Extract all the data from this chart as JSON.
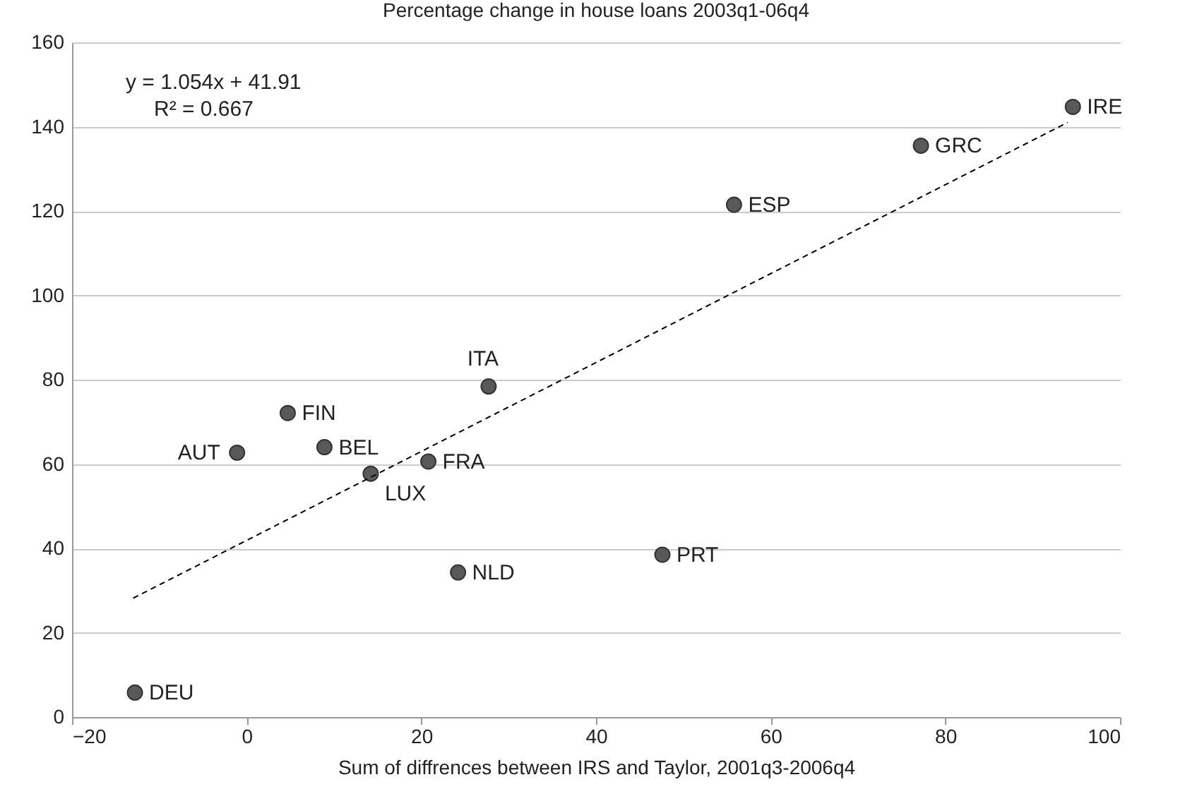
{
  "chart_data": {
    "type": "scatter",
    "title": "Percentage change in house loans 2003q1-06q4",
    "xlabel": "Sum of diffrences between IRS and Taylor, 2001q3-2006q4",
    "xlim": [
      -20,
      100
    ],
    "xticks": [
      -20,
      0,
      20,
      40,
      60,
      80,
      100
    ],
    "ylim": [
      0,
      160
    ],
    "yticks": [
      0,
      20,
      40,
      60,
      80,
      100,
      120,
      140,
      160
    ],
    "grid": "y",
    "annotations": [
      "y = 1.054x + 41.91",
      "R² = 0.667"
    ],
    "series": [
      {
        "color": "#595959",
        "marker": "circle",
        "x": [
          -12.8,
          -1.1,
          4.7,
          8.9,
          14.2,
          20.8,
          24.2,
          27.7,
          47.6,
          55.8,
          77.2,
          94.6
        ],
        "values": [
          5.8,
          62.7,
          72.1,
          64.0,
          57.7,
          60.6,
          34.3,
          78.4,
          38.5,
          121.5,
          135.5,
          144.7
        ],
        "value_labels": [
          "DEU",
          "AUT",
          "FIN",
          "BEL",
          "LUX",
          "FRA",
          "NLD",
          "ITA",
          "PRT",
          "ESP",
          "GRC",
          "IRE"
        ]
      },
      {
        "type": "line",
        "color": "#000000",
        "line_style": "dashed",
        "marker": "none",
        "x": [
          -13,
          94
        ],
        "values": [
          28.2,
          141.0
        ]
      }
    ]
  }
}
